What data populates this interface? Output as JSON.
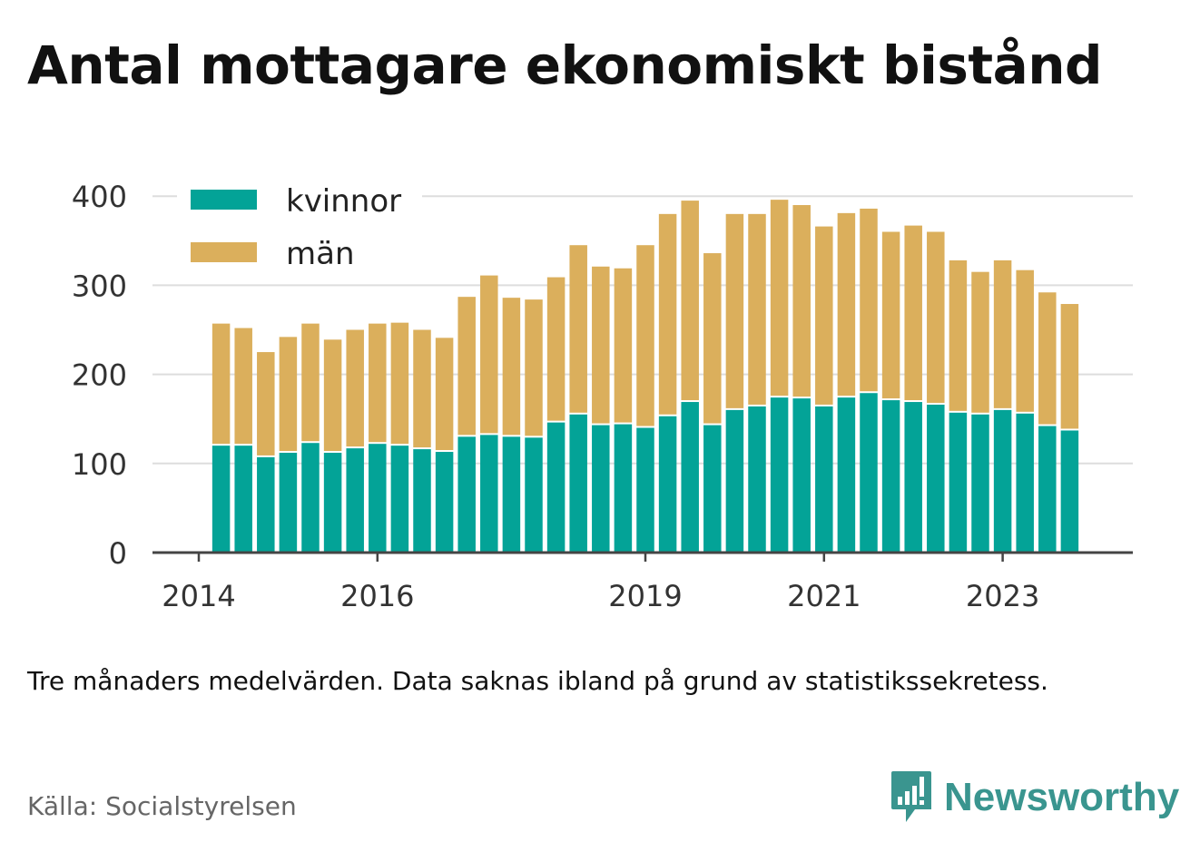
{
  "title": "Antal mottagare ekonomiskt bistånd",
  "note": "Tre månaders medelvärden. Data saknas ibland på grund av statistikssekretess.",
  "source": "Källa: Socialstyrelsen",
  "brand": {
    "name": "Newsworthy",
    "icon": "newsworthy-logo-icon",
    "color": "#3a958f"
  },
  "chart_data": {
    "type": "bar",
    "stacked": true,
    "title": "Antal mottagare ekonomiskt bistånd",
    "xlabel": "",
    "ylabel": "",
    "ylim": [
      0,
      420
    ],
    "yticks": [
      0,
      100,
      200,
      300,
      400
    ],
    "yticklabels": [
      "0",
      "100",
      "200",
      "300",
      "400"
    ],
    "grid": true,
    "legend_position": "top-left",
    "xticks": [
      {
        "label": "2014",
        "quarter": 0
      },
      {
        "label": "2016",
        "quarter": 8
      },
      {
        "label": "2019",
        "quarter": 20
      },
      {
        "label": "2021",
        "quarter": 28
      },
      {
        "label": "2023",
        "quarter": 36
      }
    ],
    "categories": [
      "2014 Q2",
      "2014 Q3",
      "2014 Q4",
      "2015 Q1",
      "2015 Q2",
      "2015 Q3",
      "2015 Q4",
      "2016 Q1",
      "2016 Q2",
      "2016 Q3",
      "2016 Q4",
      "2017 Q1",
      "2017 Q2",
      "2017 Q3",
      "2017 Q4",
      "2018 Q1",
      "2018 Q2",
      "2018 Q3",
      "2018 Q4",
      "2019 Q1",
      "2019 Q2",
      "2019 Q3",
      "2019 Q4",
      "2020 Q1",
      "2020 Q2",
      "2020 Q3",
      "2020 Q4",
      "2021 Q1",
      "2021 Q2",
      "2021 Q3",
      "2021 Q4",
      "2022 Q1",
      "2022 Q2",
      "2022 Q3",
      "2022 Q4",
      "2023 Q1",
      "2023 Q2",
      "2023 Q3",
      "2023 Q4"
    ],
    "series": [
      {
        "name": "kvinnor",
        "color": "#03a397",
        "values": [
          120,
          120,
          107,
          112,
          123,
          112,
          117,
          122,
          120,
          116,
          113,
          130,
          132,
          130,
          129,
          146,
          155,
          143,
          144,
          140,
          153,
          169,
          143,
          160,
          164,
          174,
          173,
          164,
          174,
          179,
          171,
          169,
          166,
          157,
          155,
          160,
          156,
          142,
          137
        ]
      },
      {
        "name": "män",
        "color": "#dbaf5c",
        "values": [
          137,
          132,
          118,
          130,
          134,
          127,
          133,
          135,
          138,
          134,
          128,
          157,
          179,
          156,
          155,
          163,
          190,
          178,
          175,
          205,
          227,
          226,
          193,
          220,
          216,
          222,
          217,
          202,
          207,
          207,
          189,
          198,
          194,
          171,
          160,
          168,
          161,
          150,
          142
        ]
      }
    ]
  }
}
